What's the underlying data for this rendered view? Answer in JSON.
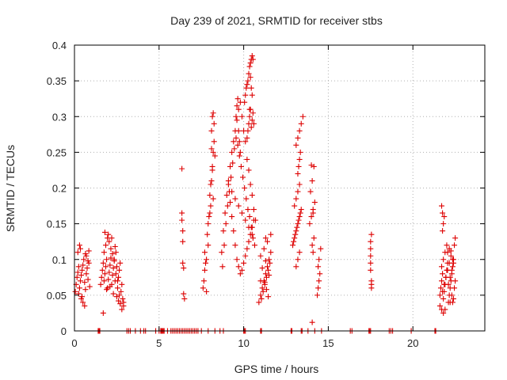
{
  "chart_data": {
    "type": "scatter",
    "title": "Day 239 of 2021, SRMTID for receiver stbs",
    "xlabel": "GPS time / hours",
    "ylabel": "SRMTID / TECUs",
    "xlim": [
      0,
      24.25
    ],
    "ylim": [
      0,
      0.4
    ],
    "x_ticks": [
      0,
      5,
      10,
      15,
      20
    ],
    "x_tick_labels": [
      "0",
      "5",
      "10",
      "15",
      "20"
    ],
    "y_ticks": [
      0,
      0.05,
      0.1,
      0.15,
      0.2,
      0.25,
      0.3,
      0.35,
      0.4
    ],
    "y_tick_labels": [
      "0",
      "0.05",
      "0.1",
      "0.15",
      "0.2",
      "0.25",
      "0.3",
      "0.35",
      "0.4"
    ],
    "grid": true,
    "marker": "+",
    "marker_color": "#dd0000",
    "series": [
      {
        "name": "SRMTID",
        "x": [
          0.05,
          0.1,
          0.15,
          0.2,
          0.25,
          0.3,
          0.35,
          0.4,
          0.45,
          0.5,
          0.55,
          0.6,
          0.65,
          0.7,
          0.75,
          0.8,
          0.85,
          0.9,
          0.2,
          0.3,
          0.4,
          0.5,
          0.6,
          0.7,
          0.8,
          0.25,
          0.45,
          0.65,
          0.85,
          0.35,
          1.55,
          1.6,
          1.65,
          1.7,
          1.75,
          1.8,
          1.85,
          1.9,
          1.95,
          2.0,
          2.05,
          2.1,
          2.15,
          2.2,
          2.25,
          2.3,
          2.35,
          2.4,
          2.45,
          2.5,
          2.55,
          2.6,
          2.65,
          2.7,
          2.75,
          2.8,
          2.85,
          2.9,
          1.75,
          1.85,
          1.95,
          2.05,
          2.15,
          2.25,
          2.35,
          2.45,
          2.55,
          2.65,
          1.8,
          2.0,
          2.2,
          2.4,
          2.6,
          1.7,
          1.9,
          2.1,
          2.3,
          2.5,
          2.7,
          2.8,
          2.9,
          6.35,
          6.35,
          6.35,
          6.4,
          6.4,
          6.4,
          6.45,
          6.45,
          6.5,
          7.6,
          7.65,
          7.7,
          7.75,
          7.8,
          7.85,
          7.9,
          7.95,
          8.0,
          8.05,
          8.1,
          8.15,
          8.2,
          8.25,
          8.1,
          8.15,
          8.2,
          8.25,
          8.1,
          8.2,
          8.15,
          7.9,
          8.0,
          8.3,
          8.05,
          7.7,
          7.8,
          8.7,
          8.8,
          8.9,
          9.0,
          9.1,
          9.2,
          9.3,
          9.4,
          9.5,
          9.6,
          9.7,
          9.8,
          9.9,
          10.0,
          10.1,
          10.2,
          10.3,
          10.4,
          10.5,
          10.6,
          10.7,
          8.75,
          8.85,
          8.95,
          9.05,
          9.15,
          9.25,
          9.35,
          9.45,
          9.55,
          9.65,
          9.75,
          9.85,
          9.95,
          10.05,
          10.15,
          10.25,
          10.35,
          10.45,
          10.55,
          10.65,
          9.2,
          9.3,
          9.4,
          9.5,
          9.6,
          9.7,
          9.8,
          9.9,
          10.0,
          10.1,
          10.2,
          10.3,
          10.4,
          10.5,
          10.6,
          9.1,
          9.3,
          9.5,
          9.7,
          9.9,
          10.1,
          10.3,
          10.5,
          9.55,
          9.6,
          9.65,
          9.7,
          9.75,
          9.8,
          10.05,
          10.1,
          10.15,
          10.2,
          10.25,
          10.3,
          10.35,
          10.4,
          10.45,
          10.5,
          10.55,
          10.4,
          10.45,
          10.5,
          10.2,
          10.25,
          10.3,
          10.35,
          10.4,
          10.45,
          10.5,
          10.55,
          10.6,
          10.35,
          10.9,
          11.0,
          11.1,
          11.2,
          11.3,
          11.4,
          11.5,
          11.6,
          11.05,
          11.15,
          11.25,
          11.35,
          11.45,
          11.55,
          11.0,
          11.2,
          11.4,
          11.6,
          11.1,
          11.3,
          11.5,
          11.25,
          11.35,
          11.45,
          11.0,
          11.3,
          12.9,
          13.0,
          13.1,
          13.2,
          13.3,
          13.4,
          12.95,
          13.05,
          13.15,
          13.25,
          13.35,
          13.0,
          13.1,
          13.2,
          13.3,
          13.2,
          13.25,
          13.3,
          13.35,
          13.1,
          13.2,
          13.3,
          13.4,
          13.5,
          13.2,
          13.3,
          13.1,
          13.9,
          14.0,
          14.1,
          14.2,
          13.95,
          14.05,
          14.15,
          14.0,
          14.1,
          14.15,
          14.05,
          14.1,
          14.05,
          14.35,
          14.4,
          14.45,
          14.5,
          14.4,
          14.45,
          14.55,
          17.5,
          17.5,
          17.5,
          17.5,
          17.5,
          17.55,
          17.55,
          17.55,
          17.55,
          21.6,
          21.65,
          21.7,
          21.75,
          21.8,
          21.85,
          21.9,
          21.95,
          22.0,
          22.05,
          22.1,
          22.15,
          22.2,
          22.25,
          22.3,
          22.35,
          22.4,
          22.45,
          22.5,
          21.7,
          21.8,
          21.9,
          22.0,
          22.1,
          22.2,
          22.3,
          22.4,
          21.75,
          21.85,
          21.95,
          22.05,
          22.15,
          22.25,
          22.35,
          21.6,
          21.7,
          21.8,
          21.9,
          22.2,
          22.3,
          22.4,
          22.5,
          21.75,
          21.8,
          21.85,
          21.7,
          21.75,
          22.25,
          22.45,
          22.35,
          22.05,
          22.15,
          1.4,
          1.45,
          1.5,
          3.1,
          3.2,
          3.3,
          3.6,
          3.9,
          4.1,
          4.2,
          4.8,
          5.0,
          5.1,
          5.15,
          5.2,
          5.25,
          5.3,
          5.5,
          5.7,
          5.8,
          5.9,
          6.0,
          6.1,
          6.2,
          6.3,
          6.4,
          6.5,
          6.6,
          6.7,
          6.8,
          6.9,
          7.0,
          7.1,
          7.2,
          7.3,
          7.5,
          7.9,
          8.3,
          8.6,
          8.8,
          10.0,
          10.05,
          10.1,
          11.0,
          11.05,
          12.8,
          12.85,
          13.4,
          13.45,
          13.8,
          14.2,
          14.6,
          16.3,
          16.4,
          17.4,
          17.45,
          17.5,
          18.6,
          18.7,
          18.8,
          19.9,
          21.3,
          21.35
        ],
        "y": [
          0.055,
          0.065,
          0.075,
          0.082,
          0.09,
          0.06,
          0.07,
          0.078,
          0.085,
          0.092,
          0.1,
          0.068,
          0.058,
          0.08,
          0.088,
          0.072,
          0.095,
          0.062,
          0.11,
          0.12,
          0.045,
          0.04,
          0.035,
          0.105,
          0.098,
          0.052,
          0.048,
          0.108,
          0.112,
          0.115,
          0.065,
          0.075,
          0.085,
          0.095,
          0.07,
          0.08,
          0.09,
          0.1,
          0.06,
          0.072,
          0.082,
          0.092,
          0.102,
          0.065,
          0.078,
          0.088,
          0.098,
          0.07,
          0.08,
          0.09,
          0.06,
          0.075,
          0.085,
          0.095,
          0.055,
          0.065,
          0.045,
          0.04,
          0.11,
          0.12,
          0.13,
          0.125,
          0.115,
          0.108,
          0.1,
          0.11,
          0.07,
          0.05,
          0.138,
          0.135,
          0.13,
          0.118,
          0.042,
          0.025,
          0.058,
          0.062,
          0.052,
          0.048,
          0.038,
          0.03,
          0.035,
          0.227,
          0.165,
          0.155,
          0.14,
          0.125,
          0.095,
          0.088,
          0.052,
          0.045,
          0.06,
          0.07,
          0.11,
          0.095,
          0.055,
          0.135,
          0.15,
          0.16,
          0.19,
          0.175,
          0.21,
          0.23,
          0.25,
          0.265,
          0.28,
          0.3,
          0.305,
          0.29,
          0.255,
          0.185,
          0.225,
          0.12,
          0.165,
          0.245,
          0.205,
          0.085,
          0.1,
          0.11,
          0.14,
          0.165,
          0.19,
          0.21,
          0.23,
          0.25,
          0.265,
          0.28,
          0.295,
          0.31,
          0.32,
          0.3,
          0.28,
          0.265,
          0.24,
          0.225,
          0.205,
          0.19,
          0.17,
          0.155,
          0.09,
          0.12,
          0.15,
          0.175,
          0.195,
          0.215,
          0.235,
          0.255,
          0.27,
          0.26,
          0.245,
          0.23,
          0.215,
          0.2,
          0.185,
          0.17,
          0.16,
          0.145,
          0.13,
          0.12,
          0.18,
          0.16,
          0.14,
          0.12,
          0.1,
          0.09,
          0.08,
          0.085,
          0.095,
          0.105,
          0.115,
          0.125,
          0.135,
          0.145,
          0.155,
          0.205,
          0.195,
          0.185,
          0.175,
          0.165,
          0.155,
          0.145,
          0.135,
          0.3,
          0.315,
          0.325,
          0.28,
          0.265,
          0.25,
          0.32,
          0.33,
          0.34,
          0.345,
          0.35,
          0.36,
          0.37,
          0.375,
          0.38,
          0.385,
          0.38,
          0.355,
          0.34,
          0.33,
          0.27,
          0.28,
          0.29,
          0.3,
          0.31,
          0.285,
          0.295,
          0.305,
          0.29,
          0.31,
          0.04,
          0.05,
          0.06,
          0.07,
          0.08,
          0.09,
          0.1,
          0.11,
          0.045,
          0.055,
          0.065,
          0.075,
          0.085,
          0.095,
          0.105,
          0.115,
          0.125,
          0.135,
          0.088,
          0.098,
          0.078,
          0.068,
          0.058,
          0.048,
          0.07,
          0.13,
          0.12,
          0.13,
          0.14,
          0.15,
          0.16,
          0.17,
          0.125,
          0.135,
          0.145,
          0.155,
          0.165,
          0.175,
          0.185,
          0.195,
          0.205,
          0.22,
          0.23,
          0.24,
          0.25,
          0.26,
          0.27,
          0.28,
          0.29,
          0.3,
          0.1,
          0.11,
          0.09,
          0.15,
          0.16,
          0.17,
          0.18,
          0.195,
          0.21,
          0.23,
          0.232,
          0.165,
          0.13,
          0.12,
          0.11,
          0.012,
          0.05,
          0.06,
          0.07,
          0.08,
          0.09,
          0.1,
          0.115,
          0.085,
          0.095,
          0.105,
          0.115,
          0.125,
          0.135,
          0.06,
          0.065,
          0.07,
          0.05,
          0.06,
          0.07,
          0.08,
          0.045,
          0.055,
          0.065,
          0.075,
          0.085,
          0.095,
          0.04,
          0.05,
          0.06,
          0.07,
          0.08,
          0.09,
          0.1,
          0.06,
          0.07,
          0.09,
          0.1,
          0.11,
          0.12,
          0.065,
          0.075,
          0.085,
          0.095,
          0.055,
          0.065,
          0.075,
          0.085,
          0.095,
          0.105,
          0.04,
          0.035,
          0.03,
          0.025,
          0.03,
          0.04,
          0.05,
          0.045,
          0.13,
          0.14,
          0.15,
          0.16,
          0.175,
          0.165,
          0.112,
          0.12,
          0.1,
          0.11,
          0.115,
          0,
          0,
          0,
          0,
          0,
          0,
          0,
          0,
          0,
          0,
          0,
          0,
          0,
          0,
          0,
          0,
          0,
          0,
          0,
          0,
          0,
          0,
          0,
          0,
          0,
          0,
          0,
          0,
          0,
          0,
          0,
          0,
          0,
          0,
          0,
          0,
          0,
          0,
          0,
          0,
          0,
          0,
          0,
          0,
          0,
          0,
          0,
          0,
          0,
          0,
          0,
          0,
          0,
          0,
          0,
          0,
          0,
          0,
          0,
          0,
          0,
          0,
          0
        ]
      }
    ]
  }
}
